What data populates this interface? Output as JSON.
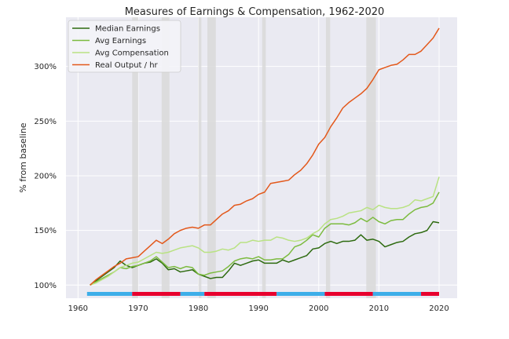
{
  "chart_data": {
    "type": "line",
    "title": "Measures of Earnings & Compensation, 1962-2020",
    "xlabel": "",
    "ylabel": "% from baseline",
    "xlim": [
      1958,
      2023
    ],
    "ylim": [
      88,
      345
    ],
    "x_ticks": [
      1960,
      1970,
      1980,
      1990,
      2000,
      2010,
      2020
    ],
    "x_tick_labels": [
      "1960",
      "1970",
      "1980",
      "1990",
      "2000",
      "2010",
      "2020"
    ],
    "y_ticks": [
      100,
      150,
      200,
      250,
      300
    ],
    "y_tick_labels": [
      "100%",
      "150%",
      "200%",
      "250%",
      "300%"
    ],
    "grid": true,
    "legend_position": "top-left",
    "recessions": [
      [
        1969.0,
        1970.0
      ],
      [
        1973.9,
        1975.2
      ],
      [
        1980.0,
        1980.5
      ],
      [
        1981.5,
        1982.9
      ],
      [
        1990.6,
        1991.2
      ],
      [
        2001.2,
        2001.9
      ],
      [
        2007.9,
        2009.5
      ]
    ],
    "party_bars": [
      {
        "start": 1961.5,
        "end": 1969.0,
        "party": "D"
      },
      {
        "start": 1969.0,
        "end": 1977.0,
        "party": "R"
      },
      {
        "start": 1977.0,
        "end": 1981.0,
        "party": "D"
      },
      {
        "start": 1981.0,
        "end": 1993.0,
        "party": "R"
      },
      {
        "start": 1993.0,
        "end": 2001.0,
        "party": "D"
      },
      {
        "start": 2001.0,
        "end": 2009.0,
        "party": "R"
      },
      {
        "start": 2009.0,
        "end": 2017.0,
        "party": "D"
      },
      {
        "start": 2017.0,
        "end": 2020.0,
        "party": "R"
      }
    ],
    "party_colors": {
      "D": "#3daee9",
      "R": "#e8002e"
    },
    "recession_color": "#d9d9d9",
    "x": [
      1962,
      1963,
      1964,
      1965,
      1966,
      1967,
      1968,
      1969,
      1970,
      1971,
      1972,
      1973,
      1974,
      1975,
      1976,
      1977,
      1978,
      1979,
      1980,
      1981,
      1982,
      1983,
      1984,
      1985,
      1986,
      1987,
      1988,
      1989,
      1990,
      1991,
      1992,
      1993,
      1994,
      1995,
      1996,
      1997,
      1998,
      1999,
      2000,
      2001,
      2002,
      2003,
      2004,
      2005,
      2006,
      2007,
      2008,
      2009,
      2010,
      2011,
      2012,
      2013,
      2014,
      2015,
      2016,
      2017,
      2018,
      2019,
      2020
    ],
    "series": [
      {
        "name": "Median Earnings",
        "color": "#2d6a0f",
        "values": [
          100,
          104,
          108,
          112,
          116,
          122,
          118,
          116,
          118,
          120,
          121,
          124,
          120,
          114,
          115,
          112,
          113,
          114,
          110,
          108,
          106,
          107,
          107,
          113,
          120,
          118,
          120,
          122,
          123,
          120,
          120,
          120,
          123,
          121,
          123,
          125,
          127,
          133,
          134,
          138,
          140,
          138,
          140,
          140,
          141,
          146,
          141,
          142,
          140,
          135,
          137,
          139,
          140,
          144,
          147,
          148,
          150,
          158,
          157
        ]
      },
      {
        "name": "Avg Earnings",
        "color": "#7cbb3f",
        "values": [
          100,
          103,
          106,
          109,
          112,
          116,
          115,
          117,
          118,
          120,
          122,
          126,
          121,
          116,
          117,
          115,
          117,
          116,
          110,
          109,
          111,
          112,
          113,
          117,
          122,
          124,
          125,
          124,
          126,
          123,
          123,
          124,
          124,
          128,
          135,
          137,
          141,
          146,
          144,
          152,
          156,
          156,
          156,
          155,
          157,
          161,
          158,
          162,
          158,
          156,
          159,
          160,
          160,
          165,
          169,
          171,
          172,
          175,
          185
        ]
      },
      {
        "name": "Avg Compensation",
        "color": "#b9e283",
        "values": [
          100,
          102,
          105,
          108,
          112,
          116,
          118,
          120,
          121,
          124,
          127,
          130,
          129,
          130,
          132,
          134,
          135,
          136,
          134,
          130,
          130,
          131,
          133,
          132,
          134,
          139,
          139,
          141,
          140,
          141,
          141,
          144,
          143,
          141,
          140,
          141,
          143,
          147,
          150,
          156,
          160,
          161,
          163,
          166,
          167,
          168,
          171,
          169,
          173,
          171,
          170,
          170,
          171,
          173,
          178,
          177,
          179,
          181,
          199
        ]
      },
      {
        "name": "Real Output / hr",
        "color": "#e3581b",
        "values": [
          100,
          105,
          109,
          113,
          117,
          120,
          124,
          125,
          126,
          131,
          136,
          141,
          138,
          142,
          147,
          150,
          152,
          153,
          152,
          155,
          155,
          160,
          165,
          168,
          173,
          174,
          177,
          179,
          183,
          185,
          193,
          194,
          195,
          196,
          201,
          205,
          211,
          219,
          229,
          235,
          245,
          253,
          262,
          267,
          271,
          275,
          280,
          288,
          297,
          299,
          301,
          302,
          306,
          311,
          311,
          314,
          320,
          326,
          335
        ]
      }
    ]
  }
}
